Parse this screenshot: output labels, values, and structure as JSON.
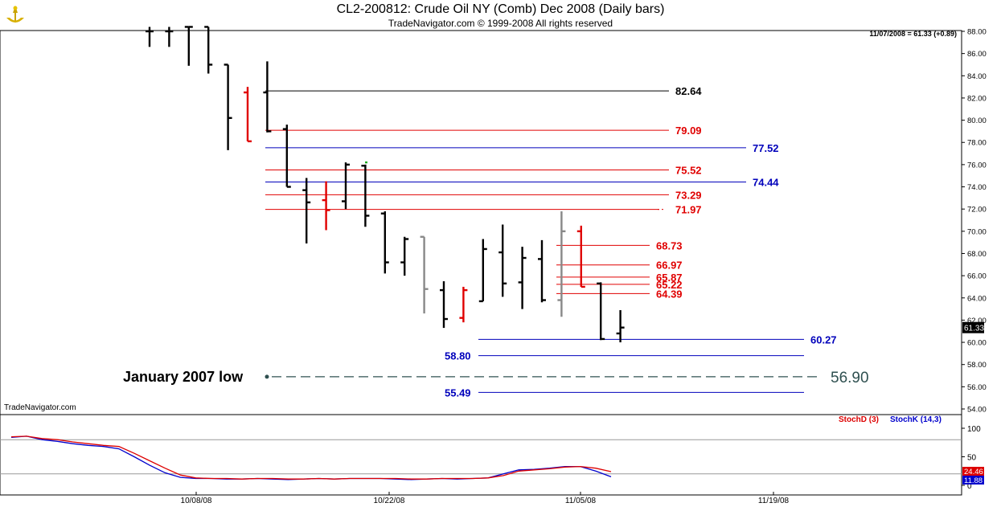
{
  "title": "CL2-200812:  Crude Oil NY (Comb) Dec 2008  (Daily bars)",
  "subtitle": "TradeNavigator.com © 1999-2008 All rights reserved",
  "quote": "11/07/2008 = 61.33 (+0.89)",
  "watermark": "TradeNavigator.com",
  "last_price": "61.33",
  "indicator": {
    "legend": [
      {
        "label": "StochD (3)",
        "color": "#dd0000"
      },
      {
        "label": "StochK (14,3)",
        "color": "#0000cc"
      }
    ],
    "ticks": [
      "100",
      "50",
      "0"
    ],
    "values": [
      "24.46",
      "11.88"
    ]
  },
  "colors": {
    "up": "#000000",
    "red": "#e00000",
    "blue": "#0000bb",
    "gray": "#888888",
    "green": "#22aa22",
    "teal": "#2f5050"
  },
  "chart_data": {
    "type": "ohlc",
    "y_ticks": [
      "54.00",
      "56.00",
      "58.00",
      "60.00",
      "62.00",
      "64.00",
      "66.00",
      "68.00",
      "70.00",
      "72.00",
      "74.00",
      "76.00",
      "78.00",
      "80.00",
      "82.00",
      "84.00",
      "86.00",
      "88.00"
    ],
    "ylim": [
      53.5,
      88.4
    ],
    "x_ticks": [
      "10/08/08",
      "10/22/08",
      "11/05/08",
      "11/19/08"
    ],
    "bars": [
      {
        "date": "09/29/08",
        "open": 88.0,
        "high": 88.4,
        "low": 86.6,
        "close": 88.0,
        "color": "black"
      },
      {
        "date": "09/30/08",
        "open": 88.0,
        "high": 88.4,
        "low": 86.6,
        "close": 88.0,
        "color": "black"
      },
      {
        "date": "10/01/08",
        "open": 88.4,
        "high": 88.4,
        "low": 84.9,
        "close": 88.4,
        "color": "black"
      },
      {
        "date": "10/02/08",
        "open": 88.4,
        "high": 88.4,
        "low": 84.2,
        "close": 85.0,
        "color": "black"
      },
      {
        "date": "10/03/08",
        "open": 85.0,
        "high": 85.0,
        "low": 77.3,
        "close": 80.2,
        "color": "black"
      },
      {
        "date": "10/06/08",
        "open": 82.5,
        "high": 83.0,
        "low": 78.1,
        "close": 78.1,
        "color": "red"
      },
      {
        "date": "10/07/08",
        "open": 82.5,
        "high": 85.3,
        "low": 78.9,
        "close": 79.0,
        "color": "black"
      },
      {
        "date": "10/08/08",
        "open": 79.2,
        "high": 79.6,
        "low": 74.0,
        "close": 74.0,
        "color": "black"
      },
      {
        "date": "10/09/08",
        "open": 73.7,
        "high": 74.8,
        "low": 68.9,
        "close": 72.6,
        "color": "black"
      },
      {
        "date": "10/10/08",
        "open": 72.8,
        "high": 74.5,
        "low": 70.1,
        "close": 71.9,
        "color": "red"
      },
      {
        "date": "10/13/08",
        "open": 72.7,
        "high": 76.2,
        "low": 72.0,
        "close": 76.0,
        "color": "black"
      },
      {
        "date": "10/14/08",
        "open": 75.9,
        "high": 76.0,
        "low": 70.4,
        "close": 71.4,
        "color": "black"
      },
      {
        "date": "10/15/08",
        "open": 71.6,
        "high": 71.8,
        "low": 66.2,
        "close": 67.2,
        "color": "black"
      },
      {
        "date": "10/16/08",
        "open": 67.2,
        "high": 69.5,
        "low": 66.0,
        "close": 69.3,
        "color": "black"
      },
      {
        "date": "10/17/08",
        "open": 69.5,
        "high": 69.5,
        "low": 62.6,
        "close": 64.8,
        "color": "gray"
      },
      {
        "date": "10/20/08",
        "open": 64.7,
        "high": 65.5,
        "low": 61.3,
        "close": 62.1,
        "color": "black"
      },
      {
        "date": "10/21/08",
        "open": 62.2,
        "high": 65.0,
        "low": 61.8,
        "close": 64.7,
        "color": "red"
      },
      {
        "date": "10/22/08",
        "open": 63.7,
        "high": 69.3,
        "low": 63.7,
        "close": 68.4,
        "color": "black"
      },
      {
        "date": "10/23/08",
        "open": 68.1,
        "high": 70.6,
        "low": 64.1,
        "close": 65.3,
        "color": "black"
      },
      {
        "date": "10/24/08",
        "open": 65.4,
        "high": 68.6,
        "low": 63.0,
        "close": 67.6,
        "color": "black"
      },
      {
        "date": "10/27/08",
        "open": 67.5,
        "high": 69.2,
        "low": 63.6,
        "close": 63.8,
        "color": "black"
      },
      {
        "date": "10/28/08",
        "open": 63.8,
        "high": 71.8,
        "low": 62.3,
        "close": 70.0,
        "color": "gray"
      },
      {
        "date": "10/29/08",
        "open": 70.0,
        "high": 70.5,
        "low": 65.0,
        "close": 65.0,
        "color": "red"
      },
      {
        "date": "10/30/08",
        "open": 65.3,
        "high": 65.4,
        "low": 60.2,
        "close": 60.3,
        "color": "black"
      },
      {
        "date": "10/31/08",
        "open": 60.8,
        "high": 62.9,
        "low": 60.0,
        "close": 61.33,
        "color": "black"
      }
    ],
    "levels": [
      {
        "value": 82.64,
        "label": "82.64",
        "color": "black",
        "x_start_date": "10/07/08",
        "x_end_date": "10/31/08"
      },
      {
        "value": 79.09,
        "label": "79.09",
        "color": "red",
        "x_start_date": "10/07/08",
        "x_end_date": "10/31/08"
      },
      {
        "value": 77.52,
        "label": "77.52",
        "color": "blue",
        "x_start_date": "10/07/08",
        "x_end_date": "11/13/08"
      },
      {
        "value": 75.52,
        "label": "75.52",
        "color": "red",
        "x_start_date": "10/07/08",
        "x_end_date": "10/31/08"
      },
      {
        "value": 74.44,
        "label": "74.44",
        "color": "blue",
        "x_start_date": "10/07/08",
        "x_end_date": "11/13/08"
      },
      {
        "value": 73.29,
        "label": "73.29",
        "color": "red",
        "x_start_date": "10/07/08",
        "x_end_date": "10/31/08"
      },
      {
        "value": 71.97,
        "label": "71.97",
        "color": "red",
        "x_start_date": "10/07/08",
        "x_end_date": "10/31/08"
      },
      {
        "value": 68.73,
        "label": "68.73",
        "color": "red",
        "x_start_date": "10/28/08",
        "x_end_date": "10/31/08"
      },
      {
        "value": 66.97,
        "label": "66.97",
        "color": "red",
        "x_start_date": "10/28/08",
        "x_end_date": "10/31/08"
      },
      {
        "value": 65.87,
        "label": "65.87",
        "color": "red",
        "x_start_date": "10/28/08",
        "x_end_date": "10/31/08"
      },
      {
        "value": 65.22,
        "label": "65.22",
        "color": "red",
        "x_start_date": "10/28/08",
        "x_end_date": "10/31/08"
      },
      {
        "value": 64.39,
        "label": "64.39",
        "color": "red",
        "x_start_date": "10/28/08",
        "x_end_date": "10/31/08"
      },
      {
        "value": 60.27,
        "label": "60.27",
        "color": "blue",
        "x_start_date": "10/22/08",
        "x_end_date": "11/13/08"
      },
      {
        "value": 58.8,
        "label": "58.80",
        "color": "blue",
        "x_start_date": "10/22/08",
        "x_end_date": "11/13/08"
      },
      {
        "value": 55.49,
        "label": "55.49",
        "color": "blue",
        "x_start_date": "10/22/08",
        "x_end_date": "11/13/08"
      }
    ],
    "annotation": {
      "label": "January 2007 low",
      "value": 56.9,
      "value_label": "56.90"
    },
    "stoch_k": [
      84,
      86,
      80,
      77,
      73,
      70,
      68,
      64,
      50,
      35,
      22,
      14,
      12,
      12,
      11,
      11,
      12,
      11,
      10,
      11,
      12,
      11,
      12,
      12,
      12,
      11,
      10,
      11,
      12,
      11,
      12,
      13,
      20,
      27,
      28,
      30,
      33,
      33,
      25,
      15
    ],
    "stoch_d": [
      85,
      86,
      82,
      80,
      76,
      73,
      70,
      68,
      56,
      43,
      30,
      18,
      13,
      12,
      12,
      11,
      12,
      12,
      11,
      11,
      12,
      11,
      12,
      12,
      12,
      12,
      11,
      11,
      12,
      12,
      12,
      13,
      17,
      25,
      27,
      29,
      32,
      33,
      30,
      24
    ]
  }
}
